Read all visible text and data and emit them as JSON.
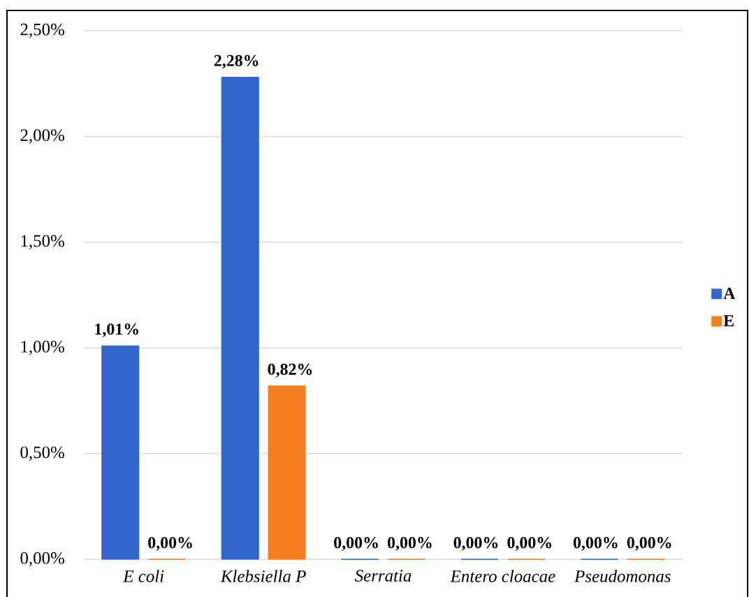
{
  "chart_data": {
    "type": "bar",
    "categories": [
      "E coli",
      "Klebsiella P",
      "Serratia",
      "Entero cloacae",
      "Pseudomonas"
    ],
    "series": [
      {
        "name": "A",
        "color": "#3366cc",
        "values": [
          1.01,
          2.28,
          0,
          0,
          0
        ],
        "value_labels": [
          "1,01%",
          "2,28%",
          "0,00%",
          "0,00%",
          "0,00%"
        ]
      },
      {
        "name": "E",
        "color": "#f57f1f",
        "values": [
          0,
          0.82,
          0,
          0,
          0
        ],
        "value_labels": [
          "0,00%",
          "0,82%",
          "0,00%",
          "0,00%",
          "0,00%"
        ]
      }
    ],
    "ylim": [
      0,
      2.5
    ],
    "yticks": [
      {
        "value": 0,
        "label": "0,00%"
      },
      {
        "value": 0.5,
        "label": "0,50%"
      },
      {
        "value": 1,
        "label": "1,00%"
      },
      {
        "value": 1.5,
        "label": "1,50%"
      },
      {
        "value": 2,
        "label": "2,00%"
      },
      {
        "value": 2.5,
        "label": "2,50%"
      }
    ],
    "grid": "y",
    "legend": "right"
  }
}
